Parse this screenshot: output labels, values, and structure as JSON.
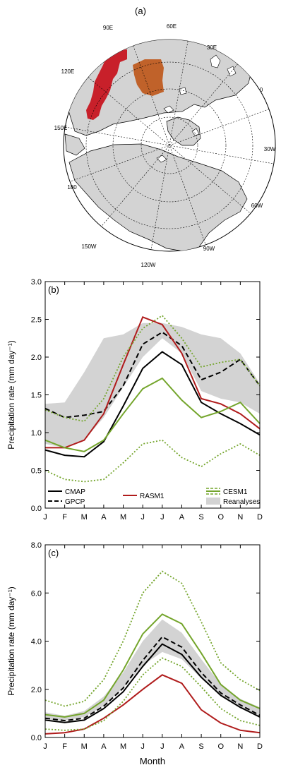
{
  "panel_a": {
    "label": "(a)",
    "meridian_labels": [
      "90E",
      "60E",
      "30E",
      "0",
      "120E",
      "150E",
      "30W",
      "180",
      "60W",
      "150W",
      "90W",
      "120W"
    ],
    "colors": {
      "land": "#d3d3d3",
      "ocean": "#ffffff",
      "region_west": "#c8202a",
      "region_east": "#c0622a"
    }
  },
  "chart_data": [
    {
      "type": "line",
      "panel_label": "(b)",
      "categories": [
        "J",
        "F",
        "M",
        "A",
        "M",
        "J",
        "J",
        "A",
        "S",
        "O",
        "N",
        "D"
      ],
      "ylabel": "Precipitation rate (mm day⁻¹)",
      "xlabel": "",
      "ylim": [
        0.0,
        3.0
      ],
      "yticks": [
        "0.0",
        "0.5",
        "1.0",
        "1.5",
        "2.0",
        "2.5",
        "3.0"
      ],
      "series": [
        {
          "name": "CMAP",
          "color": "#000000",
          "style": "solid",
          "values": [
            0.77,
            0.7,
            0.68,
            0.88,
            1.35,
            1.85,
            2.07,
            1.9,
            1.4,
            1.25,
            1.12,
            0.97
          ]
        },
        {
          "name": "GPCP",
          "color": "#000000",
          "style": "dashed",
          "values": [
            1.32,
            1.2,
            1.23,
            1.28,
            1.62,
            2.17,
            2.33,
            2.15,
            1.7,
            1.8,
            1.97,
            1.62
          ]
        },
        {
          "name": "RASM1",
          "color": "#b01c1c",
          "style": "solid",
          "values": [
            0.8,
            0.8,
            0.9,
            1.25,
            1.9,
            2.53,
            2.43,
            2.05,
            1.45,
            1.38,
            1.25,
            1.05
          ]
        },
        {
          "name": "CESM1",
          "color": "#74a52c",
          "style": "solid",
          "values": [
            0.9,
            0.8,
            0.75,
            0.9,
            1.25,
            1.58,
            1.72,
            1.43,
            1.2,
            1.28,
            1.4,
            1.12
          ]
        },
        {
          "name": "",
          "color": "#74a52c",
          "style": "dotted",
          "values": [
            1.3,
            1.2,
            1.15,
            1.45,
            2.0,
            2.38,
            2.55,
            2.25,
            1.87,
            1.93,
            1.97,
            1.62
          ]
        },
        {
          "name": "",
          "color": "#74a52c",
          "style": "dotted",
          "values": [
            0.5,
            0.38,
            0.35,
            0.38,
            0.6,
            0.85,
            0.9,
            0.67,
            0.55,
            0.72,
            0.85,
            0.7
          ]
        }
      ],
      "band": {
        "name": "Reanalyses",
        "color": "#d3d3d3",
        "lower": [
          0.85,
          0.8,
          0.9,
          1.2,
          1.6,
          2.0,
          2.25,
          2.05,
          1.55,
          1.45,
          1.4,
          1.25
        ],
        "upper": [
          1.38,
          1.4,
          1.8,
          2.25,
          2.3,
          2.45,
          2.45,
          2.4,
          2.3,
          2.25,
          2.05,
          1.65
        ]
      },
      "legend": {
        "placement": "bottom"
      }
    },
    {
      "type": "line",
      "panel_label": "(c)",
      "categories": [
        "J",
        "F",
        "M",
        "A",
        "M",
        "J",
        "J",
        "A",
        "S",
        "O",
        "N",
        "D"
      ],
      "ylabel": "Precipitation rate (mm day⁻¹)",
      "xlabel": "Month",
      "ylim": [
        0.0,
        8.0
      ],
      "yticks": [
        "0.0",
        "2.0",
        "4.0",
        "6.0",
        "8.0"
      ],
      "series": [
        {
          "name": "CMAP",
          "color": "#000000",
          "style": "solid",
          "values": [
            0.72,
            0.62,
            0.72,
            1.2,
            1.9,
            2.95,
            3.88,
            3.45,
            2.5,
            1.75,
            1.25,
            0.85
          ]
        },
        {
          "name": "GPCP",
          "color": "#000000",
          "style": "dashed",
          "values": [
            0.8,
            0.7,
            0.8,
            1.3,
            2.05,
            3.2,
            4.18,
            3.75,
            2.7,
            1.85,
            1.35,
            0.92
          ]
        },
        {
          "name": "RASM1",
          "color": "#b01c1c",
          "style": "solid",
          "values": [
            0.15,
            0.2,
            0.35,
            0.8,
            1.35,
            2.0,
            2.6,
            2.25,
            1.15,
            0.6,
            0.3,
            0.2
          ]
        },
        {
          "name": "CESM1",
          "color": "#74a52c",
          "style": "solid",
          "values": [
            0.95,
            0.85,
            1.0,
            1.55,
            2.8,
            4.3,
            5.12,
            4.72,
            3.5,
            2.2,
            1.55,
            1.2
          ]
        },
        {
          "name": "",
          "color": "#74a52c",
          "style": "dotted",
          "values": [
            1.55,
            1.3,
            1.5,
            2.4,
            4.0,
            6.0,
            6.9,
            6.4,
            4.8,
            3.1,
            2.4,
            1.95
          ]
        },
        {
          "name": "",
          "color": "#74a52c",
          "style": "dotted",
          "values": [
            0.35,
            0.3,
            0.35,
            0.7,
            1.5,
            2.6,
            3.3,
            2.95,
            2.1,
            1.2,
            0.7,
            0.5
          ]
        }
      ],
      "band": {
        "name": "Reanalyses",
        "color": "#d3d3d3",
        "lower": [
          0.75,
          0.7,
          0.85,
          1.3,
          2.05,
          3.0,
          3.55,
          3.25,
          2.45,
          1.7,
          1.2,
          0.9
        ],
        "upper": [
          1.05,
          0.9,
          1.1,
          1.7,
          2.7,
          4.0,
          4.9,
          4.35,
          3.25,
          2.2,
          1.6,
          1.25
        ]
      }
    }
  ]
}
